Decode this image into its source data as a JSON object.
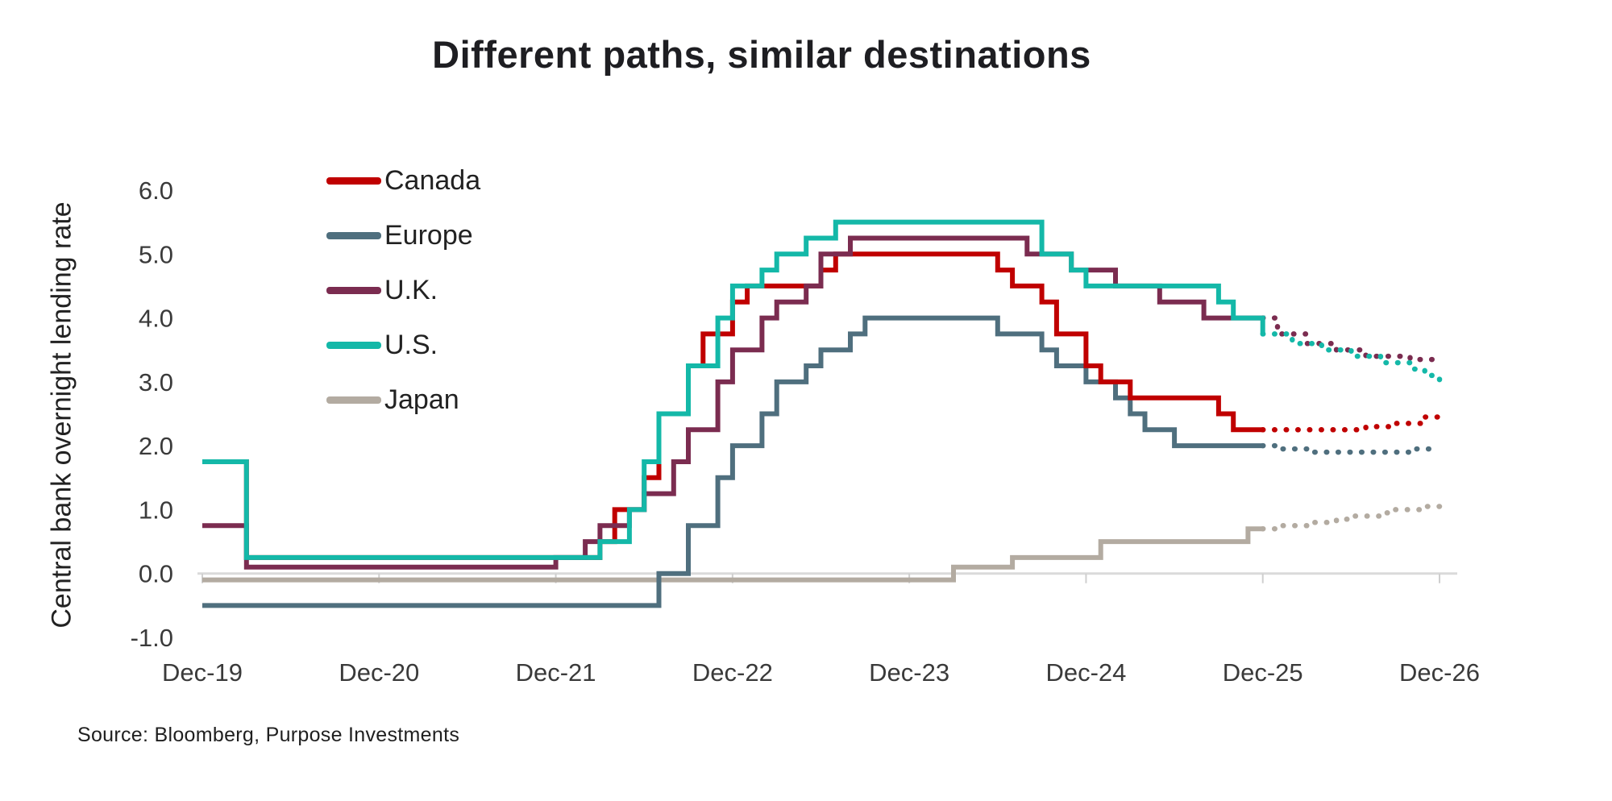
{
  "title": "Different paths, similar destinations",
  "ylabel": "Central bank overnight lending rate",
  "source": "Source: Bloomberg, Purpose Investments",
  "colors": {
    "background": "#ffffff",
    "title_text": "#1e1e22",
    "axis_text": "#3a3a3a",
    "zero_line": "#dadada",
    "axis_tick": "#cfcfcf"
  },
  "chart_data": {
    "type": "line",
    "step": true,
    "title": "Different paths, similar destinations",
    "xlabel": "",
    "ylabel": "Central bank overnight lending rate",
    "ylim": [
      -1,
      6
    ],
    "grid": false,
    "legend_position": "top-left-inside",
    "x_unit": "months since Dec-2019",
    "months_total": 84,
    "forecast_start_index": 72,
    "forecast_style": "dotted",
    "x_ticks": [
      {
        "month_index": 0,
        "label": "Dec-19"
      },
      {
        "month_index": 12,
        "label": "Dec-20"
      },
      {
        "month_index": 24,
        "label": "Dec-21"
      },
      {
        "month_index": 36,
        "label": "Dec-22"
      },
      {
        "month_index": 48,
        "label": "Dec-23"
      },
      {
        "month_index": 60,
        "label": "Dec-24"
      },
      {
        "month_index": 72,
        "label": "Dec-25"
      },
      {
        "month_index": 84,
        "label": "Dec-26"
      }
    ],
    "yticks": [
      {
        "value": -1,
        "label": "-1.0"
      },
      {
        "value": 0,
        "label": "0.0"
      },
      {
        "value": 1,
        "label": "1.0"
      },
      {
        "value": 2,
        "label": "2.0"
      },
      {
        "value": 3,
        "label": "3.0"
      },
      {
        "value": 4,
        "label": "4.0"
      },
      {
        "value": 5,
        "label": "5.0"
      },
      {
        "value": 6,
        "label": "6.0"
      }
    ],
    "series": [
      {
        "name": "Canada",
        "color": "#c00000",
        "changepoints": [
          [
            0,
            1.75
          ],
          [
            3,
            0.25
          ],
          [
            27,
            0.5
          ],
          [
            28,
            1.0
          ],
          [
            30,
            1.5
          ],
          [
            31,
            2.5
          ],
          [
            33,
            3.25
          ],
          [
            34,
            3.75
          ],
          [
            36,
            4.25
          ],
          [
            37,
            4.5
          ],
          [
            42,
            4.75
          ],
          [
            43,
            5.0
          ],
          [
            54,
            4.75
          ],
          [
            55,
            4.5
          ],
          [
            57,
            4.25
          ],
          [
            58,
            3.75
          ],
          [
            60,
            3.25
          ],
          [
            61,
            3.0
          ],
          [
            63,
            2.75
          ],
          [
            69,
            2.5
          ],
          [
            70,
            2.25
          ],
          [
            79,
            2.3
          ],
          [
            81,
            2.35
          ],
          [
            83,
            2.45
          ]
        ]
      },
      {
        "name": "Europe",
        "color": "#4f6f7e",
        "changepoints": [
          [
            0,
            -0.5
          ],
          [
            31,
            0.0
          ],
          [
            33,
            0.75
          ],
          [
            35,
            1.5
          ],
          [
            36,
            2.0
          ],
          [
            38,
            2.5
          ],
          [
            39,
            3.0
          ],
          [
            41,
            3.25
          ],
          [
            42,
            3.5
          ],
          [
            44,
            3.75
          ],
          [
            45,
            4.0
          ],
          [
            54,
            3.75
          ],
          [
            57,
            3.5
          ],
          [
            58,
            3.25
          ],
          [
            60,
            3.0
          ],
          [
            62,
            2.75
          ],
          [
            63,
            2.5
          ],
          [
            64,
            2.25
          ],
          [
            66,
            2.0
          ],
          [
            73,
            1.95
          ],
          [
            75,
            1.9
          ],
          [
            82,
            1.95
          ]
        ]
      },
      {
        "name": "U.K.",
        "color": "#7b2c50",
        "changepoints": [
          [
            0,
            0.75
          ],
          [
            3,
            0.1
          ],
          [
            24,
            0.25
          ],
          [
            26,
            0.5
          ],
          [
            27,
            0.75
          ],
          [
            29,
            1.0
          ],
          [
            30,
            1.25
          ],
          [
            32,
            1.75
          ],
          [
            33,
            2.25
          ],
          [
            35,
            3.0
          ],
          [
            36,
            3.5
          ],
          [
            38,
            4.0
          ],
          [
            39,
            4.25
          ],
          [
            41,
            4.5
          ],
          [
            42,
            5.0
          ],
          [
            44,
            5.25
          ],
          [
            56,
            5.0
          ],
          [
            59,
            4.75
          ],
          [
            62,
            4.5
          ],
          [
            65,
            4.25
          ],
          [
            68,
            4.0
          ],
          [
            73,
            3.75
          ],
          [
            75,
            3.6
          ],
          [
            77,
            3.5
          ],
          [
            79,
            3.4
          ],
          [
            82,
            3.35
          ],
          [
            84,
            3.3
          ]
        ]
      },
      {
        "name": "U.S.",
        "color": "#14b8a8",
        "changepoints": [
          [
            0,
            1.75
          ],
          [
            3,
            0.25
          ],
          [
            27,
            0.5
          ],
          [
            29,
            1.0
          ],
          [
            30,
            1.75
          ],
          [
            31,
            2.5
          ],
          [
            33,
            3.25
          ],
          [
            35,
            4.0
          ],
          [
            36,
            4.5
          ],
          [
            38,
            4.75
          ],
          [
            39,
            5.0
          ],
          [
            41,
            5.25
          ],
          [
            43,
            5.5
          ],
          [
            57,
            5.0
          ],
          [
            59,
            4.75
          ],
          [
            60,
            4.5
          ],
          [
            69,
            4.25
          ],
          [
            70,
            4.0
          ],
          [
            72,
            3.75
          ],
          [
            74,
            3.6
          ],
          [
            76,
            3.5
          ],
          [
            78,
            3.4
          ],
          [
            80,
            3.3
          ],
          [
            82,
            3.2
          ],
          [
            83,
            3.1
          ],
          [
            84,
            3.0
          ]
        ]
      },
      {
        "name": "Japan",
        "color": "#b3aba1",
        "changepoints": [
          [
            0,
            -0.1
          ],
          [
            51,
            0.1
          ],
          [
            55,
            0.25
          ],
          [
            61,
            0.5
          ],
          [
            71,
            0.7
          ],
          [
            73,
            0.75
          ],
          [
            75,
            0.8
          ],
          [
            77,
            0.85
          ],
          [
            78,
            0.9
          ],
          [
            80,
            0.95
          ],
          [
            81,
            1.0
          ],
          [
            83,
            1.05
          ],
          [
            84,
            1.1
          ]
        ]
      }
    ],
    "draw_order": [
      "Japan",
      "Europe",
      "Canada",
      "U.K.",
      "U.S."
    ]
  }
}
